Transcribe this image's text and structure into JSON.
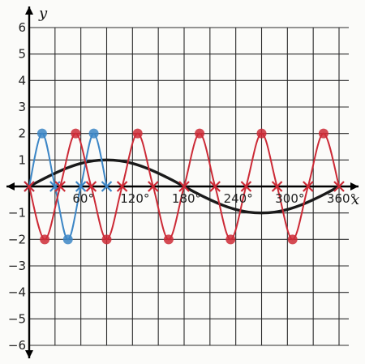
{
  "chart_data": {
    "type": "line",
    "title": "",
    "xlabel": "x",
    "ylabel": "y",
    "x_unit": "degrees",
    "xlim": [
      -3,
      372
    ],
    "ylim": [
      -6,
      6
    ],
    "grid": true,
    "x_ticks": [
      {
        "value": 60,
        "label": "60°"
      },
      {
        "value": 120,
        "label": "120°"
      },
      {
        "value": 180,
        "label": "180°"
      },
      {
        "value": 240,
        "label": "240°"
      },
      {
        "value": 300,
        "label": "300°"
      },
      {
        "value": 360,
        "label": "360°"
      }
    ],
    "y_ticks": [
      {
        "value": 6,
        "label": "6"
      },
      {
        "value": 5,
        "label": "5"
      },
      {
        "value": 4,
        "label": "4"
      },
      {
        "value": 3,
        "label": "3"
      },
      {
        "value": 2,
        "label": "2"
      },
      {
        "value": 1,
        "label": "1"
      },
      {
        "value": -1,
        "label": "−1"
      },
      {
        "value": -2,
        "label": "−2"
      },
      {
        "value": -3,
        "label": "−3"
      },
      {
        "value": -4,
        "label": "−4"
      },
      {
        "value": -5,
        "label": "−5"
      },
      {
        "value": -6,
        "label": "−6"
      }
    ],
    "series": [
      {
        "color": "#1a1a1a",
        "style": "thick",
        "markers": "none",
        "x": [
          0,
          15,
          30,
          45,
          60,
          75,
          90,
          105,
          120,
          135,
          150,
          165,
          180,
          195,
          210,
          225,
          240,
          255,
          270,
          285,
          300,
          315,
          330,
          345,
          360
        ],
        "y": [
          0,
          0.26,
          0.5,
          0.71,
          0.87,
          0.97,
          1,
          0.97,
          0.87,
          0.71,
          0.5,
          0.26,
          0,
          -0.26,
          -0.5,
          -0.71,
          -0.87,
          -0.97,
          -1,
          -0.97,
          -0.87,
          -0.71,
          -0.5,
          -0.26,
          0
        ]
      },
      {
        "color": "#3c86c6",
        "style": "thin",
        "markers": "dot",
        "x": [
          0,
          15,
          30,
          45,
          60,
          75,
          90
        ],
        "y": [
          0,
          2,
          0,
          -2,
          0,
          2,
          0
        ]
      },
      {
        "color": "#cc2a36",
        "style": "thin",
        "markers": "dot",
        "x": [
          0,
          18,
          36,
          54,
          72,
          90,
          108,
          126,
          144,
          162,
          180,
          198,
          216,
          234,
          252,
          270,
          288,
          306,
          324,
          342,
          360
        ],
        "y": [
          0,
          -2,
          0,
          2,
          0,
          -2,
          0,
          2,
          0,
          -2,
          0,
          2,
          0,
          -2,
          0,
          2,
          0,
          -2,
          0,
          2,
          0
        ]
      }
    ]
  }
}
